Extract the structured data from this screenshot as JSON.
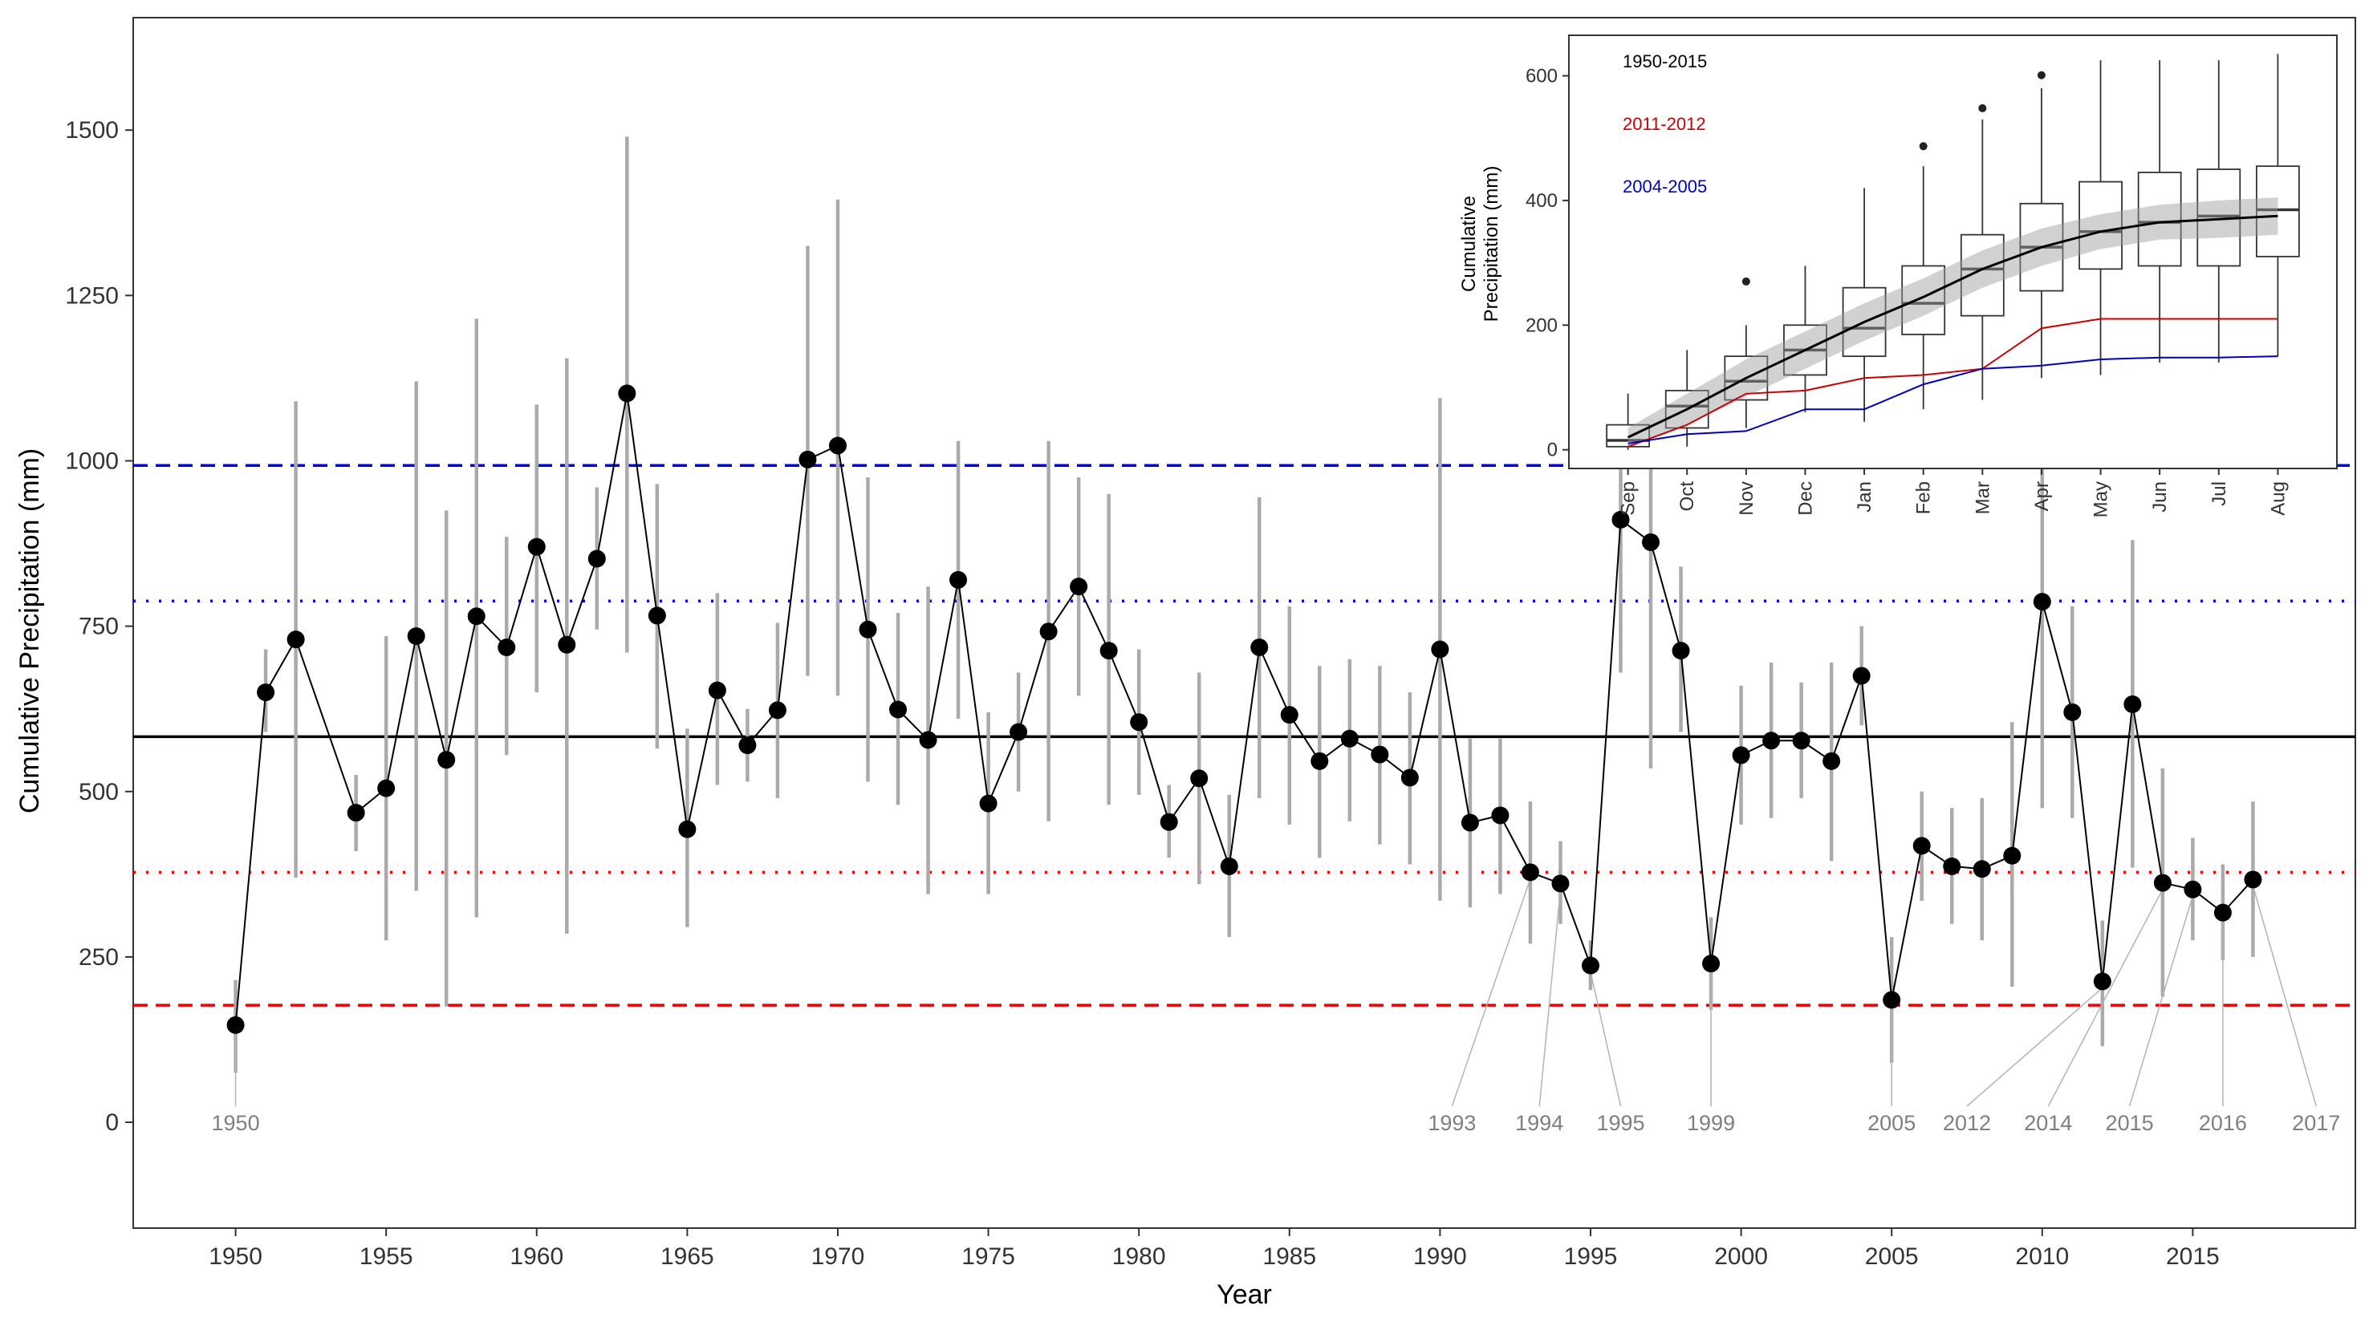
{
  "chart_data": [
    {
      "type": "line",
      "title": "",
      "xlabel": "Year",
      "ylabel": "Cumulative Precipitation (mm)",
      "xlim": [
        1946.6,
        2020.4
      ],
      "ylim": [
        -160,
        1670
      ],
      "x_ticks": [
        1950,
        1955,
        1960,
        1965,
        1970,
        1975,
        1980,
        1985,
        1990,
        1995,
        2000,
        2005,
        2010,
        2015
      ],
      "y_ticks": [
        0,
        250,
        500,
        750,
        1000,
        1250,
        1500
      ],
      "grid": false,
      "series": [
        {
          "color": "#000000",
          "points": [
            {
              "x": 1950,
              "y": 147,
              "low": 75,
              "high": 215
            },
            {
              "x": 1951,
              "y": 650,
              "low": 590,
              "high": 715
            },
            {
              "x": 1952,
              "y": 730,
              "low": 370,
              "high": 1090
            },
            {
              "x": 1954,
              "y": 468,
              "low": 410,
              "high": 525
            },
            {
              "x": 1955,
              "y": 505,
              "low": 275,
              "high": 735
            },
            {
              "x": 1956,
              "y": 735,
              "low": 350,
              "high": 1120
            },
            {
              "x": 1957,
              "y": 548,
              "low": 175,
              "high": 925
            },
            {
              "x": 1958,
              "y": 765,
              "low": 310,
              "high": 1215
            },
            {
              "x": 1959,
              "y": 718,
              "low": 555,
              "high": 885
            },
            {
              "x": 1960,
              "y": 870,
              "low": 650,
              "high": 1085
            },
            {
              "x": 1961,
              "y": 722,
              "low": 285,
              "high": 1155
            },
            {
              "x": 1962,
              "y": 852,
              "low": 745,
              "high": 960
            },
            {
              "x": 1963,
              "y": 1102,
              "low": 710,
              "high": 1490
            },
            {
              "x": 1964,
              "y": 766,
              "low": 565,
              "high": 965
            },
            {
              "x": 1965,
              "y": 443,
              "low": 295,
              "high": 595
            },
            {
              "x": 1966,
              "y": 653,
              "low": 510,
              "high": 800
            },
            {
              "x": 1967,
              "y": 570,
              "low": 515,
              "high": 625
            },
            {
              "x": 1968,
              "y": 623,
              "low": 490,
              "high": 755
            },
            {
              "x": 1969,
              "y": 1002,
              "low": 675,
              "high": 1325
            },
            {
              "x": 1970,
              "y": 1023,
              "low": 645,
              "high": 1395
            },
            {
              "x": 1971,
              "y": 745,
              "low": 515,
              "high": 975
            },
            {
              "x": 1972,
              "y": 624,
              "low": 480,
              "high": 770
            },
            {
              "x": 1973,
              "y": 578,
              "low": 345,
              "high": 810
            },
            {
              "x": 1974,
              "y": 820,
              "low": 610,
              "high": 1030
            },
            {
              "x": 1975,
              "y": 482,
              "low": 345,
              "high": 620
            },
            {
              "x": 1976,
              "y": 590,
              "low": 500,
              "high": 680
            },
            {
              "x": 1977,
              "y": 742,
              "low": 455,
              "high": 1030
            },
            {
              "x": 1978,
              "y": 810,
              "low": 645,
              "high": 975
            },
            {
              "x": 1979,
              "y": 713,
              "low": 480,
              "high": 950
            },
            {
              "x": 1980,
              "y": 605,
              "low": 495,
              "high": 715
            },
            {
              "x": 1981,
              "y": 454,
              "low": 400,
              "high": 510
            },
            {
              "x": 1982,
              "y": 520,
              "low": 360,
              "high": 680
            },
            {
              "x": 1983,
              "y": 387,
              "low": 280,
              "high": 495
            },
            {
              "x": 1984,
              "y": 718,
              "low": 490,
              "high": 945
            },
            {
              "x": 1985,
              "y": 616,
              "low": 450,
              "high": 780
            },
            {
              "x": 1986,
              "y": 546,
              "low": 400,
              "high": 690
            },
            {
              "x": 1987,
              "y": 580,
              "low": 455,
              "high": 700
            },
            {
              "x": 1988,
              "y": 556,
              "low": 420,
              "high": 690
            },
            {
              "x": 1989,
              "y": 521,
              "low": 390,
              "high": 650
            },
            {
              "x": 1990,
              "y": 715,
              "low": 335,
              "high": 1095
            },
            {
              "x": 1991,
              "y": 453,
              "low": 325,
              "high": 580
            },
            {
              "x": 1992,
              "y": 464,
              "low": 345,
              "high": 580
            },
            {
              "x": 1993,
              "y": 378,
              "low": 270,
              "high": 485
            },
            {
              "x": 1994,
              "y": 361,
              "low": 300,
              "high": 425
            },
            {
              "x": 1995,
              "y": 237,
              "low": 200,
              "high": 275
            },
            {
              "x": 1996,
              "y": 911,
              "low": 680,
              "high": 1140
            },
            {
              "x": 1997,
              "y": 877,
              "low": 535,
              "high": 1220
            },
            {
              "x": 1998,
              "y": 713,
              "low": 590,
              "high": 840
            },
            {
              "x": 1999,
              "y": 240,
              "low": 170,
              "high": 310
            },
            {
              "x": 2000,
              "y": 555,
              "low": 450,
              "high": 660
            },
            {
              "x": 2001,
              "y": 577,
              "low": 460,
              "high": 695
            },
            {
              "x": 2002,
              "y": 577,
              "low": 490,
              "high": 665
            },
            {
              "x": 2003,
              "y": 546,
              "low": 395,
              "high": 695
            },
            {
              "x": 2004,
              "y": 675,
              "low": 600,
              "high": 750
            },
            {
              "x": 2005,
              "y": 185,
              "low": 90,
              "high": 280
            },
            {
              "x": 2006,
              "y": 418,
              "low": 335,
              "high": 500
            },
            {
              "x": 2007,
              "y": 387,
              "low": 300,
              "high": 475
            },
            {
              "x": 2008,
              "y": 383,
              "low": 275,
              "high": 490
            },
            {
              "x": 2009,
              "y": 403,
              "low": 205,
              "high": 605
            },
            {
              "x": 2010,
              "y": 787,
              "low": 475,
              "high": 1095
            },
            {
              "x": 2011,
              "y": 620,
              "low": 460,
              "high": 780
            },
            {
              "x": 2012,
              "y": 213,
              "low": 115,
              "high": 305
            },
            {
              "x": 2013,
              "y": 632,
              "low": 385,
              "high": 880
            },
            {
              "x": 2014,
              "y": 362,
              "low": 190,
              "high": 535
            },
            {
              "x": 2015,
              "y": 352,
              "low": 275,
              "high": 430
            },
            {
              "x": 2016,
              "y": 317,
              "low": 245,
              "high": 390
            },
            {
              "x": 2017,
              "y": 367,
              "low": 250,
              "high": 485
            }
          ]
        }
      ],
      "reference_lines": [
        {
          "y": 993,
          "color": "#0000ee",
          "style": "dashed"
        },
        {
          "y": 788,
          "color": "#0000ee",
          "style": "dotted"
        },
        {
          "y": 583,
          "color": "#000000",
          "style": "solid"
        },
        {
          "y": 378,
          "color": "#ee0000",
          "style": "dotted"
        },
        {
          "y": 177,
          "color": "#ee0000",
          "style": "dashed"
        }
      ],
      "annotations": [
        {
          "label": "1950",
          "year": 1950,
          "y": 147,
          "label_x": 1950
        },
        {
          "label": "1993",
          "year": 1993,
          "y": 378,
          "label_x": 1990.4
        },
        {
          "label": "1994",
          "year": 1994,
          "y": 361,
          "label_x": 1993.3
        },
        {
          "label": "1995",
          "year": 1995,
          "y": 237,
          "label_x": 1996.0
        },
        {
          "label": "1999",
          "year": 1999,
          "y": 240,
          "label_x": 1999.0
        },
        {
          "label": "2005",
          "year": 2005,
          "y": 185,
          "label_x": 2005.0
        },
        {
          "label": "2012",
          "year": 2012,
          "y": 213,
          "label_x": 2007.5
        },
        {
          "label": "2014",
          "year": 2014,
          "y": 362,
          "label_x": 2010.2
        },
        {
          "label": "2015",
          "year": 2015,
          "y": 352,
          "label_x": 2012.9
        },
        {
          "label": "2016",
          "year": 2016,
          "y": 317,
          "label_x": 2016.0
        },
        {
          "label": "2017",
          "year": 2017,
          "y": 367,
          "label_x": 2019.1
        }
      ]
    },
    {
      "type": "box",
      "title": "",
      "xlabel": "",
      "ylabel": "Cumulative\nPrecipitation (mm)",
      "categories": [
        "Sep",
        "Oct",
        "Nov",
        "Dec",
        "Jan",
        "Feb",
        "Mar",
        "Apr",
        "May",
        "Jun",
        "Jul",
        "Aug"
      ],
      "ylim": [
        -30,
        665
      ],
      "y_ticks": [
        0,
        200,
        400,
        600
      ],
      "grid": false,
      "boxes": [
        {
          "min": 0,
          "q1": 5,
          "median": 15,
          "q3": 40,
          "max": 90,
          "outliers": []
        },
        {
          "min": 5,
          "q1": 35,
          "median": 70,
          "q3": 95,
          "max": 160,
          "outliers": []
        },
        {
          "min": 35,
          "q1": 80,
          "median": 110,
          "q3": 150,
          "max": 200,
          "outliers": [
            270
          ]
        },
        {
          "min": 60,
          "q1": 120,
          "median": 160,
          "q3": 200,
          "max": 295,
          "outliers": []
        },
        {
          "min": 45,
          "q1": 150,
          "median": 195,
          "q3": 260,
          "max": 420,
          "outliers": []
        },
        {
          "min": 65,
          "q1": 185,
          "median": 235,
          "q3": 295,
          "max": 455,
          "outliers": [
            487
          ]
        },
        {
          "min": 80,
          "q1": 215,
          "median": 290,
          "q3": 345,
          "max": 530,
          "outliers": [
            548
          ]
        },
        {
          "min": 115,
          "q1": 255,
          "median": 325,
          "q3": 395,
          "max": 580,
          "outliers": [
            601
          ]
        },
        {
          "min": 120,
          "q1": 290,
          "median": 350,
          "q3": 430,
          "max": 625,
          "outliers": []
        },
        {
          "min": 140,
          "q1": 295,
          "median": 365,
          "q3": 445,
          "max": 625,
          "outliers": []
        },
        {
          "min": 140,
          "q1": 295,
          "median": 375,
          "q3": 450,
          "max": 625,
          "outliers": []
        },
        {
          "min": 150,
          "q1": 310,
          "median": 385,
          "q3": 455,
          "max": 635,
          "outliers": []
        }
      ],
      "series": [
        {
          "name": "1950-2015",
          "color": "#000000",
          "values": [
            20,
            65,
            115,
            160,
            205,
            245,
            290,
            325,
            350,
            365,
            370,
            375
          ],
          "band": [
            15,
            25,
            30,
            30,
            30,
            30,
            30,
            30,
            28,
            28,
            30,
            30
          ]
        },
        {
          "name": "2011-2012",
          "color": "#cc0000",
          "values": [
            5,
            40,
            90,
            95,
            115,
            120,
            130,
            195,
            210,
            210,
            210,
            210
          ]
        },
        {
          "name": "2004-2005",
          "color": "#0000bb",
          "values": [
            10,
            25,
            30,
            65,
            65,
            105,
            130,
            135,
            145,
            148,
            148,
            150
          ]
        }
      ],
      "legend": {
        "position": "top-left"
      }
    }
  ]
}
